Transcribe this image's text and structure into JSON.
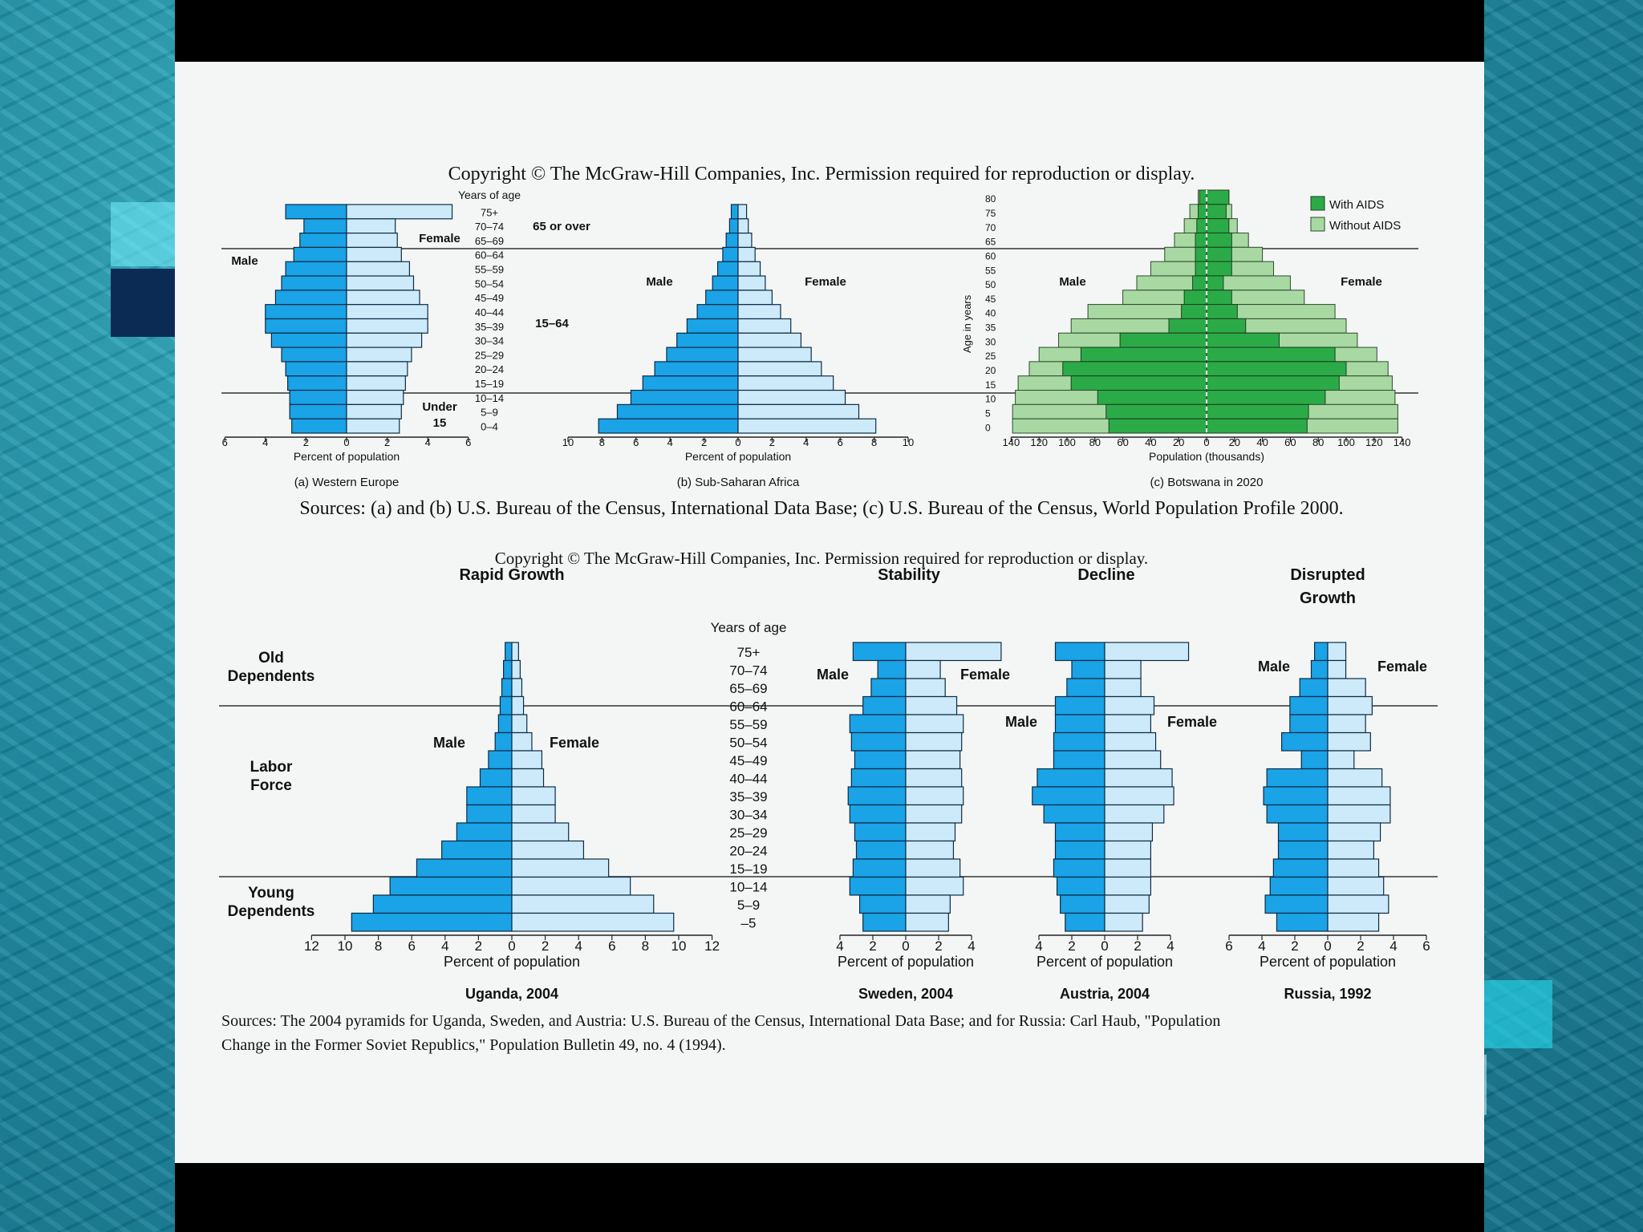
{
  "slide": {
    "copyright_top": "Copyright © The McGraw-Hill Companies, Inc. Permission required for reproduction or display.",
    "sources_top": "Sources: (a) and (b) U.S. Bureau of the Census, International Data Base; (c) U.S. Bureau of the Census, World Population Profile 2000.",
    "copyright_bottom": "Copyright © The McGraw-Hill Companies, Inc.  Permission required for reproduction or display.",
    "sources_bottom_line1": "Sources: The 2004 pyramids for Uganda, Sweden, and Austria: U.S. Bureau of the Census, International Data Base; and for Russia: Carl Haub, \"Population",
    "sources_bottom_line2": "Change in the Former Soviet Republics,\" Population Bulletin 49, no. 4 (1994)."
  },
  "colors": {
    "male_blue": "#1aa3e6",
    "female_blue": "#cdeafa",
    "aids_green": "#2bab48",
    "noaids_green": "#a8d9a2"
  },
  "chart_data": [
    {
      "id": "western-europe",
      "type": "bar",
      "orientation": "horizontal-pyramid",
      "caption": "(a) Western Europe",
      "xlabel": "Percent of population",
      "xlim": [
        -6,
        6
      ],
      "x_ticks": [
        "6",
        "4",
        "2",
        "0",
        "2",
        "4",
        "6"
      ],
      "age_header": "Years of age",
      "ages": [
        "75+",
        "70–74",
        "65–69",
        "60–64",
        "55–59",
        "50–54",
        "45–49",
        "40–44",
        "35–39",
        "30–34",
        "25–29",
        "20–24",
        "15–19",
        "10–14",
        "5–9",
        "0–4"
      ],
      "series": [
        {
          "name": "Male",
          "values": [
            3.0,
            2.1,
            2.3,
            2.6,
            3.0,
            3.2,
            3.5,
            4.0,
            4.0,
            3.7,
            3.2,
            3.0,
            2.9,
            2.8,
            2.8,
            2.7
          ]
        },
        {
          "name": "Female",
          "values": [
            5.2,
            2.4,
            2.5,
            2.7,
            3.1,
            3.3,
            3.6,
            4.0,
            4.0,
            3.7,
            3.2,
            3.0,
            2.9,
            2.8,
            2.7,
            2.6
          ]
        }
      ],
      "group_labels": [
        "65 or over",
        "15–64",
        "Under 15"
      ],
      "series_labels": [
        "Male",
        "Female"
      ]
    },
    {
      "id": "sub-saharan-africa",
      "type": "bar",
      "orientation": "horizontal-pyramid",
      "caption": "(b) Sub-Saharan Africa",
      "xlabel": "Percent of population",
      "xlim": [
        -10,
        10
      ],
      "x_ticks": [
        "10",
        "8",
        "6",
        "4",
        "2",
        "0",
        "2",
        "4",
        "6",
        "8",
        "10"
      ],
      "ages": [
        "75+",
        "70–74",
        "65–69",
        "60–64",
        "55–59",
        "50–54",
        "45–49",
        "40–44",
        "35–39",
        "30–34",
        "25–29",
        "20–24",
        "15–19",
        "10–14",
        "5–9",
        "0–4"
      ],
      "series": [
        {
          "name": "Male",
          "values": [
            0.4,
            0.5,
            0.7,
            0.9,
            1.2,
            1.5,
            1.9,
            2.4,
            3.0,
            3.6,
            4.2,
            4.9,
            5.6,
            6.3,
            7.1,
            8.2
          ]
        },
        {
          "name": "Female",
          "values": [
            0.5,
            0.6,
            0.8,
            1.0,
            1.3,
            1.6,
            2.0,
            2.5,
            3.1,
            3.7,
            4.3,
            4.9,
            5.6,
            6.3,
            7.1,
            8.1
          ]
        }
      ],
      "series_labels": [
        "Male",
        "Female"
      ]
    },
    {
      "id": "botswana-2020",
      "type": "bar",
      "orientation": "horizontal-pyramid",
      "caption": "(c) Botswana in 2020",
      "xlabel": "Population (thousands)",
      "ylabel": "Age in years",
      "xlim": [
        -140,
        140
      ],
      "x_ticks": [
        "140",
        "120",
        "100",
        "80",
        "60",
        "40",
        "20",
        "0",
        "20",
        "40",
        "60",
        "80",
        "100",
        "120",
        "140"
      ],
      "ages": [
        "80",
        "75",
        "70",
        "65",
        "60",
        "55",
        "50",
        "45",
        "40",
        "35",
        "30",
        "25",
        "20",
        "15",
        "10",
        "5",
        "0"
      ],
      "series": [
        {
          "name": "With AIDS (male)",
          "values": [
            5,
            6,
            7,
            8,
            8,
            8,
            10,
            16,
            18,
            27,
            62,
            90,
            103,
            97,
            78,
            72,
            70
          ]
        },
        {
          "name": "Without AIDS (male)",
          "values": [
            6,
            12,
            16,
            23,
            30,
            40,
            50,
            60,
            85,
            97,
            106,
            120,
            127,
            135,
            137,
            139,
            139
          ]
        },
        {
          "name": "With AIDS (female)",
          "values": [
            16,
            14,
            16,
            18,
            18,
            18,
            12,
            18,
            22,
            28,
            52,
            92,
            100,
            95,
            85,
            73,
            72
          ]
        },
        {
          "name": "Without AIDS (female)",
          "values": [
            16,
            18,
            22,
            30,
            40,
            48,
            60,
            70,
            92,
            100,
            108,
            122,
            130,
            133,
            135,
            137,
            137
          ]
        }
      ],
      "legend": [
        "With AIDS",
        "Without AIDS"
      ],
      "series_labels": [
        "Male",
        "Female"
      ]
    },
    {
      "id": "uganda-2004",
      "type": "bar",
      "orientation": "horizontal-pyramid",
      "header": "Rapid Growth",
      "caption": "Uganda, 2004",
      "xlabel": "Percent of population",
      "xlim": [
        -12,
        12
      ],
      "x_ticks": [
        "12",
        "10",
        "8",
        "6",
        "4",
        "2",
        "0",
        "2",
        "4",
        "6",
        "8",
        "10",
        "12"
      ],
      "age_header": "Years of age",
      "ages": [
        "75+",
        "70–74",
        "65–69",
        "60–64",
        "55–59",
        "50–54",
        "45–49",
        "40–44",
        "35–39",
        "30–34",
        "25–29",
        "20–24",
        "15–19",
        "10–14",
        "5–9",
        "–5"
      ],
      "series": [
        {
          "name": "Male",
          "values": [
            0.4,
            0.5,
            0.6,
            0.7,
            0.8,
            1.0,
            1.4,
            1.9,
            2.7,
            2.7,
            3.3,
            4.2,
            5.7,
            7.3,
            8.3,
            9.6
          ]
        },
        {
          "name": "Female",
          "values": [
            0.4,
            0.5,
            0.6,
            0.7,
            0.9,
            1.2,
            1.8,
            1.9,
            2.6,
            2.6,
            3.4,
            4.3,
            5.8,
            7.1,
            8.5,
            9.7
          ]
        }
      ],
      "group_labels": [
        "Old Dependents",
        "Labor Force",
        "Young Dependents"
      ],
      "series_labels": [
        "Male",
        "Female"
      ]
    },
    {
      "id": "sweden-2004",
      "type": "bar",
      "orientation": "horizontal-pyramid",
      "header": "Stability",
      "caption": "Sweden, 2004",
      "xlabel": "Percent of population",
      "xlim": [
        -4,
        4
      ],
      "x_ticks": [
        "4",
        "2",
        "0",
        "2",
        "4"
      ],
      "ages": [
        "75+",
        "70–74",
        "65–69",
        "60–64",
        "55–59",
        "50–54",
        "45–49",
        "40–44",
        "35–39",
        "30–34",
        "25–29",
        "20–24",
        "15–19",
        "10–14",
        "5–9",
        "–5"
      ],
      "series": [
        {
          "name": "Male",
          "values": [
            3.2,
            1.7,
            2.1,
            2.6,
            3.4,
            3.3,
            3.1,
            3.3,
            3.5,
            3.4,
            3.1,
            3.0,
            3.2,
            3.4,
            2.8,
            2.6
          ]
        },
        {
          "name": "Female",
          "values": [
            5.8,
            2.1,
            2.4,
            3.1,
            3.5,
            3.4,
            3.3,
            3.4,
            3.5,
            3.4,
            3.0,
            2.9,
            3.3,
            3.5,
            2.7,
            2.6
          ]
        }
      ],
      "series_labels": [
        "Male",
        "Female"
      ]
    },
    {
      "id": "austria-2004",
      "type": "bar",
      "orientation": "horizontal-pyramid",
      "header": "Decline",
      "caption": "Austria, 2004",
      "xlabel": "Percent of population",
      "xlim": [
        -4,
        4
      ],
      "x_ticks": [
        "4",
        "2",
        "0",
        "2",
        "4"
      ],
      "ages": [
        "75+",
        "70–74",
        "65–69",
        "60–64",
        "55–59",
        "50–54",
        "45–49",
        "40–44",
        "35–39",
        "30–34",
        "25–29",
        "20–24",
        "15–19",
        "10–14",
        "5–9",
        "–5"
      ],
      "series": [
        {
          "name": "Male",
          "values": [
            3.0,
            2.0,
            2.3,
            3.0,
            3.0,
            3.1,
            3.1,
            4.1,
            4.4,
            3.7,
            3.0,
            3.0,
            3.1,
            2.9,
            2.7,
            2.4
          ]
        },
        {
          "name": "Female",
          "values": [
            5.1,
            2.2,
            2.2,
            3.0,
            2.8,
            3.1,
            3.4,
            4.1,
            4.2,
            3.6,
            2.9,
            2.8,
            2.8,
            2.8,
            2.7,
            2.3
          ]
        }
      ],
      "series_labels": [
        "Male",
        "Female"
      ]
    },
    {
      "id": "russia-1992",
      "type": "bar",
      "orientation": "horizontal-pyramid",
      "header": "Disrupted Growth",
      "caption": "Russia, 1992",
      "xlabel": "Percent of population",
      "xlim": [
        -6,
        6
      ],
      "x_ticks": [
        "6",
        "4",
        "2",
        "0",
        "2",
        "4",
        "6"
      ],
      "ages": [
        "75+",
        "70–74",
        "65–69",
        "60–64",
        "55–59",
        "50–54",
        "45–49",
        "40–44",
        "35–39",
        "30–34",
        "25–29",
        "20–24",
        "15–19",
        "10–14",
        "5–9",
        "–5"
      ],
      "series": [
        {
          "name": "Male",
          "values": [
            0.8,
            1.0,
            1.7,
            2.3,
            2.3,
            2.8,
            1.6,
            3.7,
            3.9,
            3.7,
            3.0,
            3.0,
            3.3,
            3.5,
            3.8,
            3.1
          ]
        },
        {
          "name": "Female",
          "values": [
            1.1,
            1.1,
            2.3,
            2.7,
            2.3,
            2.6,
            1.6,
            3.3,
            3.8,
            3.8,
            3.2,
            2.8,
            3.1,
            3.4,
            3.7,
            3.1
          ]
        }
      ],
      "series_labels": [
        "Male",
        "Female"
      ]
    }
  ]
}
